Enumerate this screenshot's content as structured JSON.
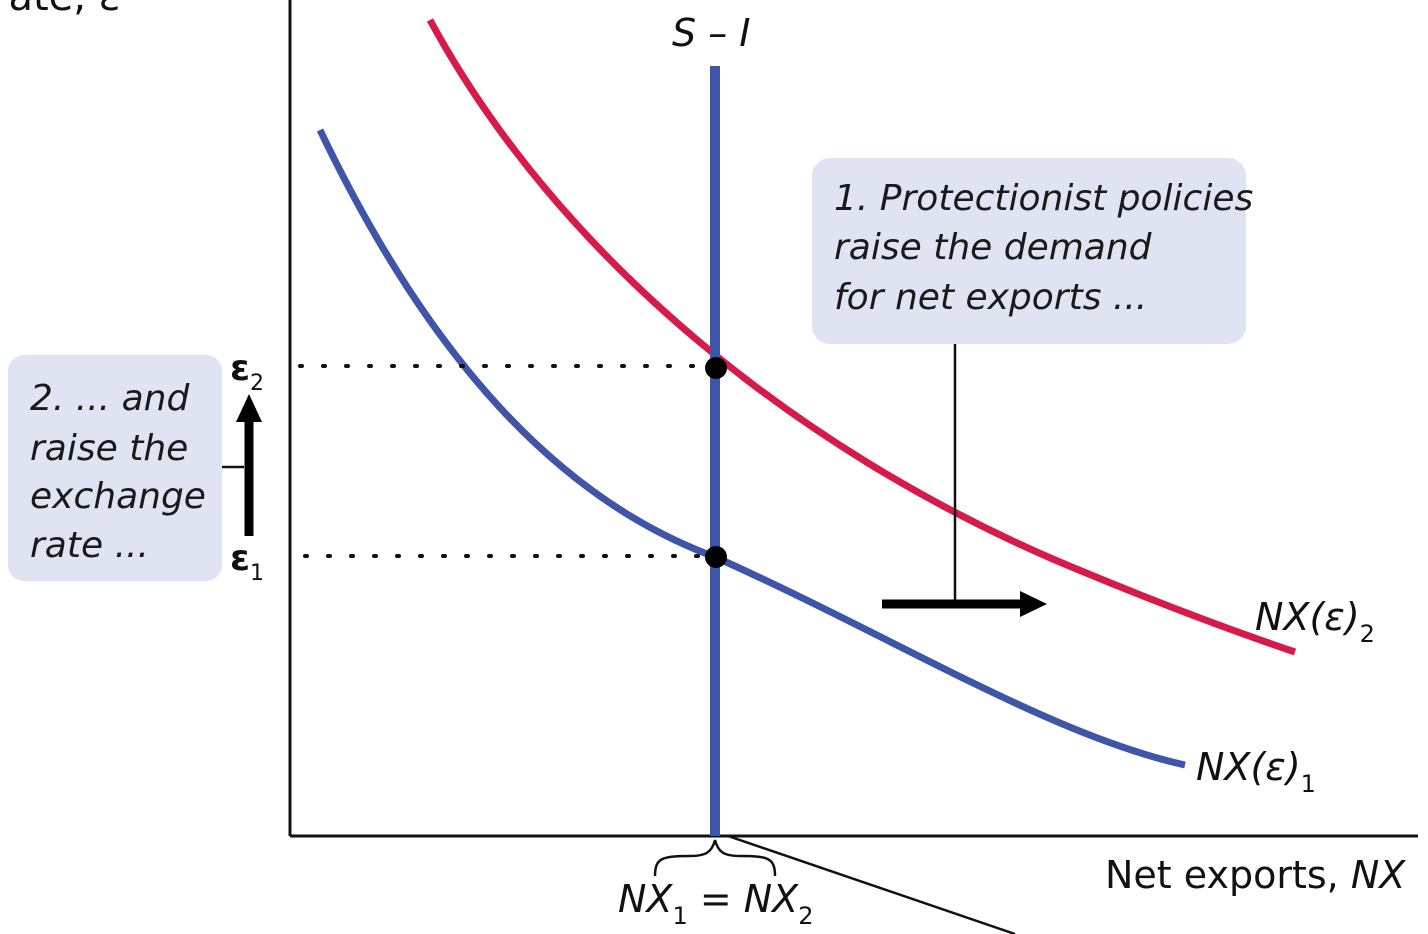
{
  "y_axis_label": "rate, ε",
  "x_axis_label": {
    "text": "Net exports, ",
    "symbol": "NX"
  },
  "curve_labels": {
    "saving_minus_investment": "S – I",
    "nx_curve_1": "NX(ε)",
    "nx_curve_1_subscript": "1",
    "nx_curve_2": "NX(ε)",
    "nx_curve_2_subscript": "2"
  },
  "equilibrium_labels": {
    "e1": "ε",
    "e1_subscript": "1",
    "e2": "ε",
    "e2_subscript": "2",
    "nx_equality": {
      "a": "NX",
      "a_sub": "1",
      "eq": " = ",
      "b": "NX",
      "b_sub": "2"
    }
  },
  "annotations": {
    "step1": [
      "1. Protectionist policies",
      "raise the demand",
      "for net exports ..."
    ],
    "step2": [
      "2. ... and",
      "raise the",
      "exchange",
      "rate ..."
    ]
  },
  "colors": {
    "curve_1": "#3f56a8",
    "curve_2": "#d61a4a",
    "supply_line": "#3f56a8",
    "note_box": "#dfe3f2",
    "axis": "#111111"
  }
}
